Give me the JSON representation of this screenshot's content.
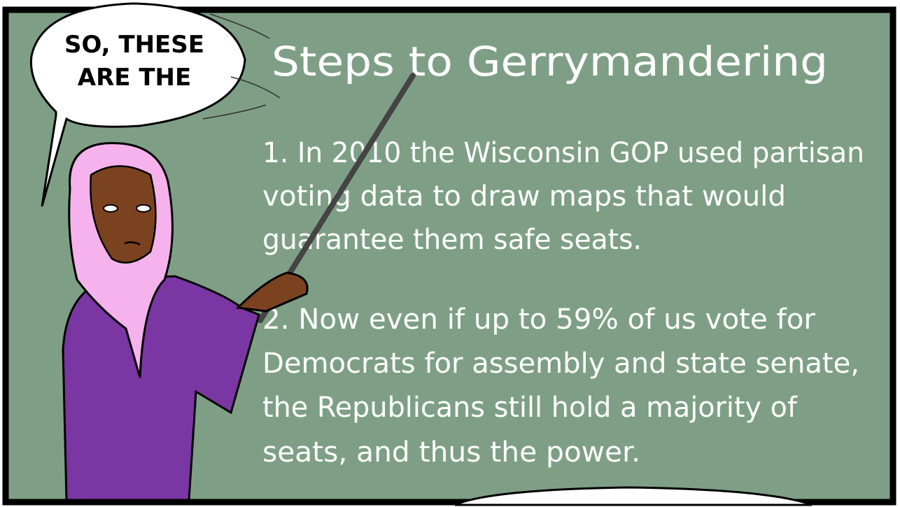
{
  "speech_bubble": {
    "lines": [
      "SO, THESE",
      "ARE THE"
    ]
  },
  "board": {
    "title": "Steps to Gerrymandering",
    "steps": [
      {
        "lines": [
          "1. In 2010 the Wisconsin GOP used partisan",
          "voting data to draw maps that would",
          "guarantee them safe seats."
        ]
      },
      {
        "lines": [
          "2. Now even if up to 59% of us vote for",
          "Democrats for assembly and state senate,",
          "the Republicans still hold a majority of",
          "seats, and thus the power."
        ]
      }
    ]
  }
}
